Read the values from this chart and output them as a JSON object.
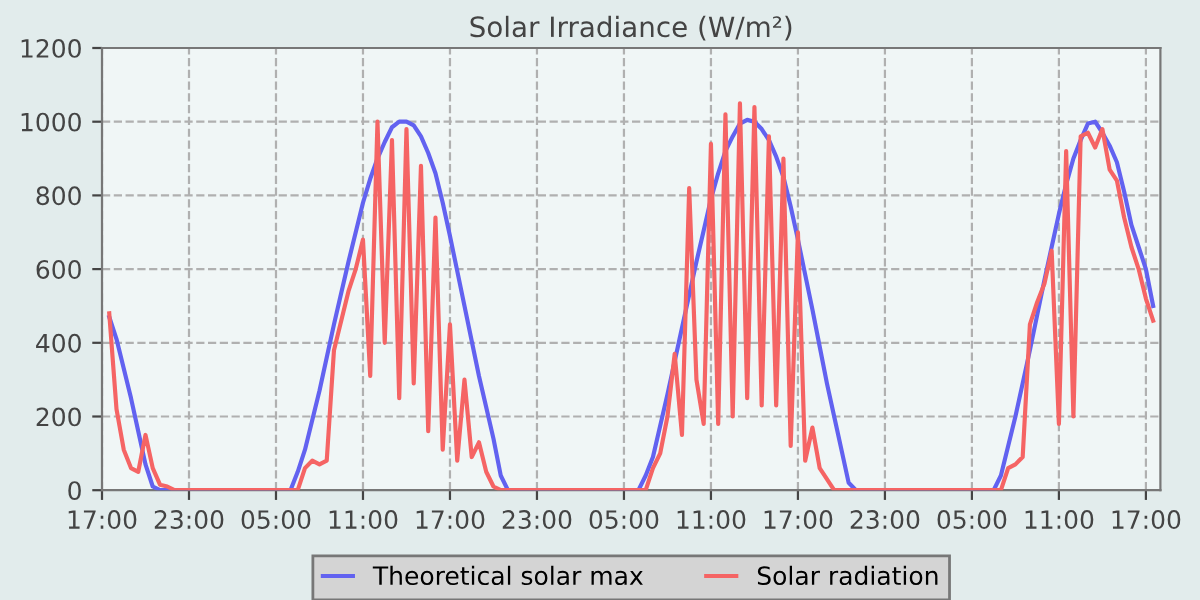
{
  "chart_data": {
    "type": "line",
    "title": "Solar Irradiance (W/m²)",
    "categories": [
      "17:00",
      null,
      null,
      null,
      null,
      null,
      null,
      null,
      null,
      null,
      null,
      null,
      "23:00",
      null,
      null,
      null,
      null,
      null,
      null,
      null,
      null,
      null,
      null,
      null,
      "05:00",
      null,
      null,
      null,
      null,
      null,
      null,
      null,
      null,
      null,
      null,
      null,
      "11:00",
      null,
      null,
      null,
      null,
      null,
      null,
      null,
      null,
      null,
      null,
      null,
      "17:00",
      null,
      null,
      null,
      null,
      null,
      null,
      null,
      null,
      null,
      null,
      null,
      "23:00",
      null,
      null,
      null,
      null,
      null,
      null,
      null,
      null,
      null,
      null,
      null,
      "05:00",
      null,
      null,
      null,
      null,
      null,
      null,
      null,
      null,
      null,
      null,
      null,
      "11:00",
      null,
      null,
      null,
      null,
      null,
      null,
      null,
      null,
      null,
      null,
      null,
      "17:00",
      null,
      null,
      null,
      null,
      null,
      null,
      null,
      null,
      null,
      null,
      null,
      "23:00",
      null,
      null,
      null,
      null,
      null,
      null,
      null,
      null,
      null,
      null,
      null,
      "05:00",
      null,
      null,
      null,
      null,
      null,
      null,
      null,
      null,
      null,
      null,
      null,
      "11:00",
      null,
      null,
      null,
      null,
      null,
      null,
      null,
      null,
      null,
      null,
      null,
      "17:00",
      null,
      null
    ],
    "ylim": [
      0,
      1200
    ],
    "yticks": [
      0,
      200,
      400,
      600,
      800,
      1000,
      1200
    ],
    "grid": true,
    "legend": "bottom",
    "line_style": "solid",
    "marker": "none",
    "series": [
      {
        "name": "Theoretical solar max",
        "color": "#6262f0",
        "values": [
          null,
          470,
          410,
          330,
          250,
          160,
          70,
          10,
          0,
          0,
          0,
          0,
          0,
          0,
          0,
          0,
          0,
          0,
          0,
          0,
          0,
          0,
          0,
          0,
          0,
          0,
          0,
          50,
          110,
          190,
          270,
          360,
          450,
          535,
          620,
          700,
          780,
          845,
          900,
          945,
          985,
          1000,
          1000,
          990,
          960,
          915,
          860,
          780,
          690,
          595,
          500,
          405,
          310,
          225,
          140,
          40,
          0,
          0,
          0,
          0,
          0,
          0,
          0,
          0,
          0,
          0,
          0,
          0,
          0,
          0,
          0,
          0,
          0,
          0,
          0,
          40,
          90,
          175,
          260,
          350,
          440,
          530,
          620,
          705,
          790,
          860,
          920,
          960,
          995,
          1005,
          1000,
          980,
          950,
          905,
          850,
          770,
          680,
          585,
          490,
          390,
          290,
          200,
          110,
          20,
          0,
          0,
          0,
          0,
          0,
          0,
          0,
          0,
          0,
          0,
          0,
          0,
          0,
          0,
          0,
          0,
          0,
          0,
          0,
          0,
          40,
          120,
          200,
          290,
          380,
          475,
          570,
          660,
          750,
          830,
          900,
          950,
          995,
          1000,
          970,
          935,
          890,
          810,
          720,
          660,
          600,
          500,
          null
        ]
      },
      {
        "name": "Solar radiation",
        "color": "#f56464",
        "values": [
          null,
          480,
          220,
          110,
          60,
          50,
          150,
          60,
          15,
          10,
          0,
          0,
          0,
          0,
          0,
          0,
          0,
          0,
          0,
          0,
          0,
          0,
          0,
          0,
          0,
          0,
          0,
          0,
          60,
          80,
          70,
          80,
          380,
          460,
          540,
          600,
          680,
          310,
          1000,
          400,
          950,
          250,
          980,
          290,
          880,
          160,
          740,
          110,
          450,
          80,
          300,
          90,
          130,
          50,
          10,
          0,
          0,
          0,
          0,
          0,
          0,
          0,
          0,
          0,
          0,
          0,
          0,
          0,
          0,
          0,
          0,
          0,
          0,
          0,
          0,
          0,
          60,
          100,
          200,
          370,
          150,
          820,
          300,
          180,
          940,
          180,
          1020,
          200,
          1050,
          250,
          1040,
          230,
          960,
          230,
          900,
          120,
          700,
          80,
          170,
          60,
          30,
          0,
          0,
          0,
          0,
          0,
          0,
          0,
          0,
          0,
          0,
          0,
          0,
          0,
          0,
          0,
          0,
          0,
          0,
          0,
          0,
          0,
          0,
          0,
          0,
          60,
          70,
          90,
          450,
          510,
          560,
          650,
          180,
          920,
          200,
          960,
          970,
          930,
          980,
          870,
          840,
          740,
          660,
          600,
          520,
          460,
          null
        ]
      }
    ]
  }
}
